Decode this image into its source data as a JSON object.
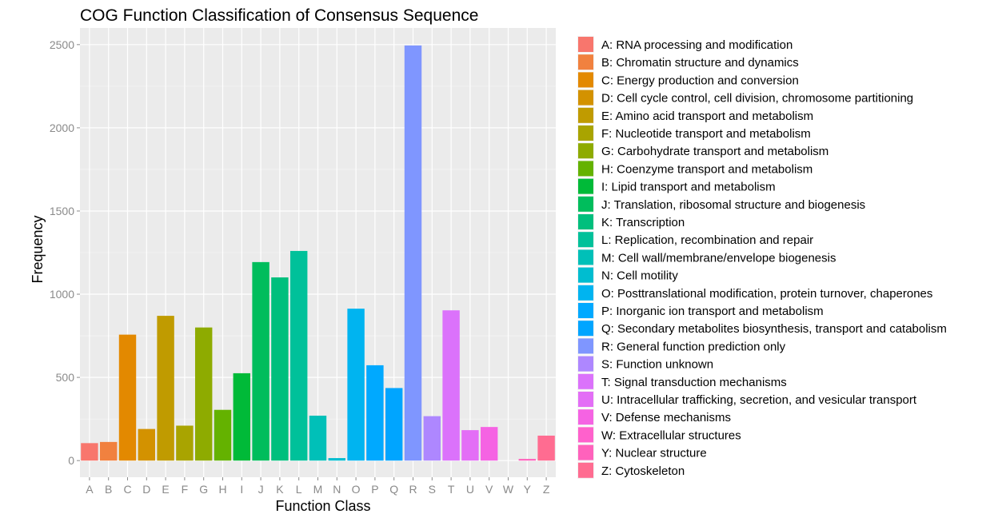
{
  "chart_data": {
    "type": "bar",
    "title": "COG Function Classification of Consensus Sequence",
    "xlabel": "Function Class",
    "ylabel": "Frequency",
    "ylim": [
      -100,
      2600
    ],
    "yticks": [
      0,
      500,
      1000,
      1500,
      2000,
      2500
    ],
    "grid": true,
    "background": "#ebebeb",
    "legend_position": "right",
    "categories": [
      "A",
      "B",
      "C",
      "D",
      "E",
      "F",
      "G",
      "H",
      "I",
      "J",
      "K",
      "L",
      "M",
      "N",
      "O",
      "P",
      "Q",
      "R",
      "S",
      "T",
      "U",
      "V",
      "W",
      "Y",
      "Z"
    ],
    "values": [
      105,
      112,
      757,
      190,
      870,
      210,
      800,
      305,
      525,
      1193,
      1101,
      1260,
      270,
      15,
      913,
      573,
      436,
      2495,
      267,
      903,
      183,
      202,
      0,
      10,
      150
    ],
    "colors": [
      "#F8766D",
      "#F1813F",
      "#E38900",
      "#D39200",
      "#C09B00",
      "#A9A400",
      "#8EAB00",
      "#64B200",
      "#00BA38",
      "#00BD5C",
      "#00BF7D",
      "#00C19A",
      "#00C0B8",
      "#00BDD0",
      "#00B4F0",
      "#00A9FF",
      "#00A5FF",
      "#7F96FF",
      "#AE87FF",
      "#DB72FB",
      "#E36EF6",
      "#F563E3",
      "#FF61CC",
      "#FF62BC",
      "#FF6C91"
    ],
    "legend": [
      "A: RNA processing and modification",
      "B: Chromatin structure and dynamics",
      "C: Energy production and conversion",
      "D: Cell cycle control, cell division, chromosome partitioning",
      "E: Amino acid transport and metabolism",
      "F: Nucleotide transport and metabolism",
      "G: Carbohydrate transport and metabolism",
      "H: Coenzyme transport and metabolism",
      "I: Lipid transport and metabolism",
      "J: Translation, ribosomal structure and biogenesis",
      "K: Transcription",
      "L: Replication, recombination and repair",
      "M: Cell wall/membrane/envelope biogenesis",
      "N: Cell motility",
      "O: Posttranslational modification, protein turnover, chaperones",
      "P: Inorganic ion transport and metabolism",
      "Q: Secondary metabolites biosynthesis, transport and catabolism",
      "R: General function prediction only",
      "S: Function unknown",
      "T: Signal transduction mechanisms",
      "U: Intracellular trafficking, secretion, and vesicular transport",
      "V: Defense mechanisms",
      "W: Extracellular structures",
      "Y: Nuclear structure",
      "Z: Cytoskeleton"
    ]
  }
}
